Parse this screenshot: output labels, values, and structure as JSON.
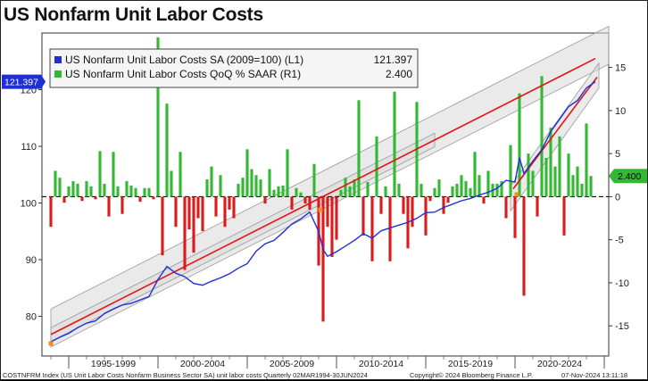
{
  "title": "US Nonfarm Unit Labor Costs",
  "footer": {
    "left": "COSTNFRM Index (US Unit Labor Costs Nonfarm Business Sector SA) unit labor costs  Quarterly 02MAR1994-30JUN2024",
    "center": "Copyright© 2024 Bloomberg Finance L.P.",
    "right": "07-Nov-2024 13:11:18"
  },
  "colors": {
    "level_line": "#1f2fd6",
    "positive_bar": "#33b833",
    "negative_bar": "#dd1a1a",
    "trend": "#e01515",
    "channel_fill": "#d9d9d9",
    "channel_line": "#9a9a9a"
  },
  "chart_data": {
    "type": "line+bar",
    "x_tick_labels": [
      "1995-1999",
      "2000-2004",
      "2005-2009",
      "2010-2014",
      "2015-2019",
      "2020-2024"
    ],
    "left_axis": {
      "ticks": [
        80,
        90,
        100,
        110,
        120
      ],
      "range": [
        73,
        130
      ]
    },
    "right_axis": {
      "ticks": [
        -15,
        -10,
        -5,
        0,
        5,
        10,
        15
      ],
      "range": [
        -18.5,
        19
      ]
    },
    "legend": [
      {
        "label": "US Nonfarm Unit Labor Costs SA (2009=100)  (L1)",
        "value": "121.397",
        "color": "#1f2fd6"
      },
      {
        "label": "US Nonfarm Unit Labor Costs QoQ % SAAR  (R1)",
        "value": "2.400",
        "color": "#33b833"
      }
    ],
    "last_value_labels": {
      "left": "121.397",
      "right": "2.400"
    },
    "series": [
      {
        "name": "US Nonfarm Unit Labor Costs SA (2009=100)",
        "axis": "left",
        "x": [
          1994.0,
          1994.5,
          1995.0,
          1995.5,
          1996.0,
          1996.5,
          1997.0,
          1997.5,
          1998.0,
          1998.5,
          1999.0,
          1999.5,
          2000.0,
          2000.5,
          2001.0,
          2001.5,
          2002.0,
          2002.5,
          2003.0,
          2003.5,
          2004.0,
          2004.5,
          2005.0,
          2005.5,
          2006.0,
          2006.5,
          2007.0,
          2007.5,
          2008.0,
          2008.5,
          2009.0,
          2009.25,
          2009.5,
          2010.0,
          2010.5,
          2011.0,
          2011.5,
          2012.0,
          2012.5,
          2013.0,
          2013.5,
          2014.0,
          2014.5,
          2015.0,
          2015.5,
          2016.0,
          2016.5,
          2017.0,
          2017.5,
          2018.0,
          2018.5,
          2019.0,
          2019.5,
          2020.0,
          2020.25,
          2020.5,
          2021.0,
          2021.5,
          2022.0,
          2022.5,
          2023.0,
          2023.5,
          2024.0,
          2024.5
        ],
        "values": [
          75.5,
          76.3,
          77.0,
          78.0,
          78.8,
          79.2,
          80.5,
          81.3,
          82.0,
          82.3,
          82.9,
          83.5,
          86.5,
          88.8,
          87.6,
          87.0,
          85.8,
          85.5,
          86.2,
          86.8,
          87.5,
          88.5,
          89.3,
          91.5,
          92.8,
          93.4,
          94.8,
          96.3,
          97.2,
          98.4,
          95.0,
          91.8,
          90.6,
          91.4,
          92.4,
          93.4,
          94.6,
          93.8,
          95.1,
          95.6,
          96.1,
          96.6,
          97.3,
          98.3,
          98.4,
          99.2,
          99.8,
          100.4,
          100.8,
          101.4,
          101.9,
          102.6,
          104.0,
          103.7,
          108.0,
          105.2,
          107.4,
          109.4,
          112.6,
          114.8,
          117.0,
          118.1,
          120.3,
          121.4
        ]
      },
      {
        "name": "US Nonfarm Unit Labor Costs QoQ % SAAR",
        "axis": "right",
        "x": [
          1994.0,
          1994.25,
          1994.5,
          1994.75,
          1995.0,
          1995.25,
          1995.5,
          1995.75,
          1996.0,
          1996.25,
          1996.5,
          1996.75,
          1997.0,
          1997.25,
          1997.5,
          1997.75,
          1998.0,
          1998.25,
          1998.5,
          1998.75,
          1999.0,
          1999.25,
          1999.5,
          1999.75,
          2000.0,
          2000.25,
          2000.5,
          2000.75,
          2001.0,
          2001.25,
          2001.5,
          2001.75,
          2002.0,
          2002.25,
          2002.5,
          2002.75,
          2003.0,
          2003.25,
          2003.5,
          2003.75,
          2004.0,
          2004.25,
          2004.5,
          2004.75,
          2005.0,
          2005.25,
          2005.5,
          2005.75,
          2006.0,
          2006.25,
          2006.5,
          2006.75,
          2007.0,
          2007.25,
          2007.5,
          2007.75,
          2008.0,
          2008.25,
          2008.5,
          2008.75,
          2009.0,
          2009.25,
          2009.5,
          2009.75,
          2010.0,
          2010.25,
          2010.5,
          2010.75,
          2011.0,
          2011.25,
          2011.5,
          2011.75,
          2012.0,
          2012.25,
          2012.5,
          2012.75,
          2013.0,
          2013.25,
          2013.5,
          2013.75,
          2014.0,
          2014.25,
          2014.5,
          2014.75,
          2015.0,
          2015.25,
          2015.5,
          2015.75,
          2016.0,
          2016.25,
          2016.5,
          2016.75,
          2017.0,
          2017.25,
          2017.5,
          2017.75,
          2018.0,
          2018.25,
          2018.5,
          2018.75,
          2019.0,
          2019.25,
          2019.5,
          2019.75,
          2020.0,
          2020.25,
          2020.5,
          2020.75,
          2021.0,
          2021.25,
          2021.5,
          2021.75,
          2022.0,
          2022.25,
          2022.5,
          2022.75,
          2023.0,
          2023.25,
          2023.5,
          2023.75,
          2024.0,
          2024.25
        ],
        "values": [
          -3.5,
          3.0,
          2.2,
          -0.7,
          1.2,
          1.8,
          1.5,
          -0.5,
          1.8,
          1.2,
          -0.3,
          5.3,
          1.5,
          -2.3,
          5.2,
          1.2,
          -2.0,
          1.8,
          1.3,
          1.0,
          -0.6,
          1.0,
          1.0,
          -0.3,
          18.5,
          -6.8,
          10.8,
          3.0,
          -3.5,
          5.2,
          -8.5,
          -3.8,
          -6.5,
          -2.5,
          -4.0,
          2.0,
          3.5,
          -2.3,
          2.5,
          -3.5,
          -1.5,
          -2.5,
          1.5,
          2.2,
          5.5,
          3.2,
          2.5,
          2.0,
          -0.8,
          3.2,
          0.8,
          1.2,
          1.3,
          5.5,
          -1.5,
          1.0,
          0.5,
          -0.8,
          -1.5,
          3.8,
          -8.0,
          -14.5,
          -3.5,
          -7.0,
          -5.0,
          0.8,
          2.2,
          1.2,
          2.0,
          11.2,
          -4.5,
          1.7,
          -7.5,
          7.0,
          -2.0,
          1.2,
          -7.5,
          12.2,
          1.5,
          -2.0,
          -6.0,
          -3.5,
          11.0,
          1.5,
          -4.5,
          -0.5,
          1.0,
          2.0,
          -2.0,
          -0.7,
          1.2,
          1.5,
          2.5,
          1.8,
          1.0,
          5.2,
          2.5,
          -0.8,
          3.0,
          1.5,
          1.5,
          1.8,
          -2.5,
          6.0,
          -4.8,
          12.0,
          -11.5,
          5.0,
          3.0,
          -2.3,
          14.0,
          4.5,
          8.0,
          3.5,
          7.0,
          -4.5,
          5.0,
          2.5,
          3.5,
          1.5,
          8.5,
          2.4
        ]
      },
      {
        "name": "Trend",
        "axis": "left",
        "x": [
          1994.0,
          2024.5
        ],
        "values": [
          76.8,
          125.5
        ]
      }
    ]
  }
}
